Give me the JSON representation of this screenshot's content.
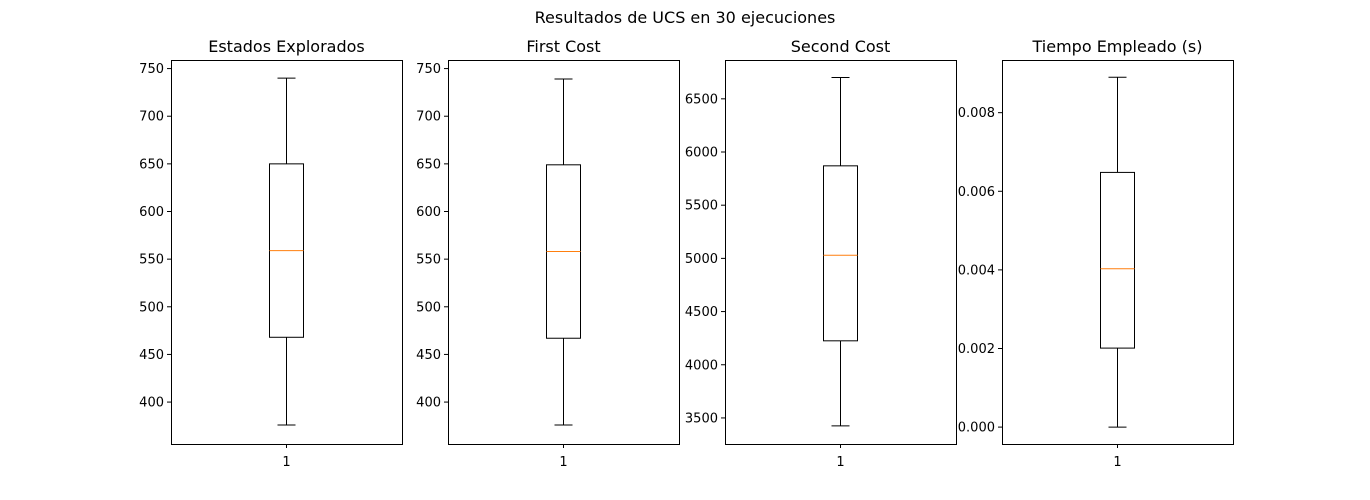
{
  "figure": {
    "suptitle": "Resultados de UCS en 30 ejecuciones"
  },
  "colors": {
    "box": "#000000",
    "median": "#ff7f0e",
    "background": "#ffffff"
  },
  "chart_data": [
    {
      "type": "box",
      "title": "Estados Explorados",
      "categories": [
        "1"
      ],
      "ylim": [
        356,
        759
      ],
      "yticks": [
        400,
        450,
        500,
        550,
        600,
        650,
        700,
        750
      ],
      "ytick_labels": [
        "400",
        "450",
        "500",
        "550",
        "600",
        "650",
        "700",
        "750"
      ],
      "box": {
        "whisker_low": 376,
        "q1": 468,
        "median": 559,
        "q3": 650,
        "whisker_high": 740
      }
    },
    {
      "type": "box",
      "title": "First Cost",
      "categories": [
        "1"
      ],
      "ylim": [
        356,
        759
      ],
      "yticks": [
        400,
        450,
        500,
        550,
        600,
        650,
        700,
        750
      ],
      "ytick_labels": [
        "400",
        "450",
        "500",
        "550",
        "600",
        "650",
        "700",
        "750"
      ],
      "box": {
        "whisker_low": 376,
        "q1": 467,
        "median": 558,
        "q3": 649,
        "whisker_high": 739
      }
    },
    {
      "type": "box",
      "title": "Second Cost",
      "categories": [
        "1"
      ],
      "ylim": [
        3255,
        6865
      ],
      "yticks": [
        3500,
        4000,
        4500,
        5000,
        5500,
        6000,
        6500
      ],
      "ytick_labels": [
        "3500",
        "4000",
        "4500",
        "5000",
        "5500",
        "6000",
        "6500"
      ],
      "box": {
        "whisker_low": 3425,
        "q1": 4225,
        "median": 5030,
        "q3": 5870,
        "whisker_high": 6700
      }
    },
    {
      "type": "box",
      "title": "Tiempo Empleado (s)",
      "categories": [
        "1"
      ],
      "ylim": [
        -0.00043,
        0.00934
      ],
      "yticks": [
        0.0,
        0.002,
        0.004,
        0.006,
        0.008
      ],
      "ytick_labels": [
        "0.000",
        "0.002",
        "0.004",
        "0.006",
        "0.008"
      ],
      "box": {
        "whisker_low": 0.0,
        "q1": 0.00201,
        "median": 0.00403,
        "q3": 0.00648,
        "whisker_high": 0.0089
      }
    }
  ]
}
